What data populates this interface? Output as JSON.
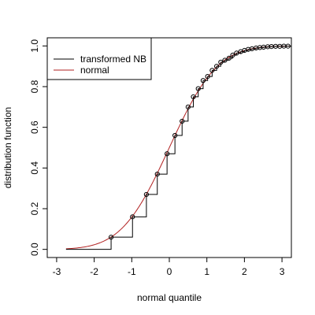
{
  "chart_data": {
    "type": "line",
    "title": "",
    "xlabel": "normal quantile",
    "ylabel": "distribution function",
    "xlim": [
      -3.25,
      3.25
    ],
    "ylim": [
      -0.04,
      1.04
    ],
    "xticks": [
      -3,
      -2,
      -1,
      0,
      1,
      2,
      3
    ],
    "xtick_labels": [
      "-3",
      "-2",
      "-1",
      "0",
      "1",
      "2",
      "3"
    ],
    "yticks": [
      0.0,
      0.2,
      0.4,
      0.6,
      0.8,
      1.0
    ],
    "ytick_labels": [
      "0.0",
      "0.2",
      "0.4",
      "0.6",
      "0.8",
      "1.0"
    ],
    "grid": false,
    "legend": {
      "position": "top-left",
      "entries": [
        {
          "label": "transformed NB",
          "color": "#000000"
        },
        {
          "label": "normal",
          "color": "#b22222"
        }
      ]
    },
    "series": [
      {
        "name": "transformed NB",
        "color": "#000000",
        "kind": "step",
        "x": [
          -1.55,
          -0.98,
          -0.61,
          -0.32,
          -0.06,
          0.15,
          0.34,
          0.5,
          0.64,
          0.77,
          0.9,
          1.02,
          1.14,
          1.26,
          1.37,
          1.48,
          1.59,
          1.69,
          1.79,
          1.9,
          2.0,
          2.1,
          2.2,
          2.31,
          2.41,
          2.51,
          2.62,
          2.72,
          2.83,
          2.94,
          3.05,
          3.16
        ],
        "y": [
          0.06,
          0.16,
          0.27,
          0.37,
          0.47,
          0.56,
          0.63,
          0.7,
          0.75,
          0.79,
          0.83,
          0.85,
          0.88,
          0.9,
          0.92,
          0.93,
          0.94,
          0.955,
          0.965,
          0.972,
          0.978,
          0.983,
          0.986,
          0.99,
          0.992,
          0.994,
          0.996,
          0.997,
          0.998,
          0.998,
          0.999,
          0.999
        ]
      },
      {
        "name": "normal",
        "color": "#b22222",
        "kind": "curve",
        "function": "standard normal CDF",
        "x_range": [
          -2.75,
          3.2
        ]
      }
    ],
    "markers": {
      "shape": "open-circle",
      "on_series": "transformed NB"
    }
  }
}
